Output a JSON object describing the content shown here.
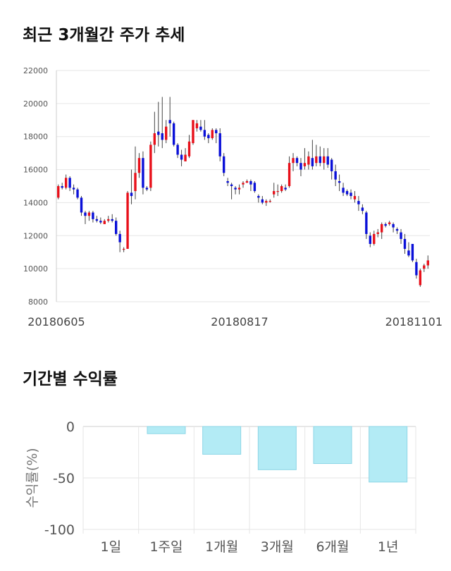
{
  "chart_data": [
    {
      "type": "candlestick",
      "title": "최근 3개월간 주가 추세",
      "ylim": [
        8000,
        22000
      ],
      "y_ticks": [
        "22000",
        "20000",
        "18000",
        "16000",
        "14000",
        "12000",
        "10000",
        "8000"
      ],
      "x_tick_labels": [
        "20180605",
        "20180817",
        "20181101"
      ],
      "colors": {
        "up": "#e8101a",
        "down": "#0a10d8",
        "grid": "#e6e6e6"
      },
      "candles": [
        [
          14300,
          15000,
          15100,
          14200
        ],
        [
          15000,
          14900,
          15200,
          14800
        ],
        [
          14900,
          15500,
          15700,
          14800
        ],
        [
          15500,
          14900,
          15600,
          14700
        ],
        [
          14900,
          14800,
          15100,
          14500
        ],
        [
          14800,
          14300,
          14900,
          14200
        ],
        [
          14300,
          13400,
          14400,
          13200
        ],
        [
          13400,
          13200,
          13500,
          12700
        ],
        [
          13200,
          13400,
          13500,
          12900
        ],
        [
          13400,
          13000,
          13500,
          12800
        ],
        [
          13000,
          12900,
          13200,
          12800
        ],
        [
          12900,
          12800,
          13100,
          12700
        ],
        [
          12700,
          12900,
          13000,
          12700
        ],
        [
          12900,
          13000,
          13200,
          12800
        ],
        [
          13000,
          12900,
          13300,
          12800
        ],
        [
          12900,
          12100,
          13100,
          12000
        ],
        [
          12100,
          11600,
          12300,
          11000
        ],
        [
          11200,
          11200,
          11300,
          11000
        ],
        [
          11200,
          14600,
          14700,
          11200
        ],
        [
          14600,
          14400,
          16000,
          13900
        ],
        [
          14700,
          15800,
          17400,
          14200
        ],
        [
          15800,
          16700,
          17000,
          15500
        ],
        [
          16700,
          14900,
          17100,
          14500
        ],
        [
          14900,
          14800,
          15000,
          14700
        ],
        [
          14900,
          17500,
          17700,
          14700
        ],
        [
          17500,
          18200,
          19500,
          17000
        ],
        [
          18300,
          18100,
          20100,
          17400
        ],
        [
          18200,
          17800,
          20400,
          17300
        ],
        [
          17800,
          18600,
          19000,
          17600
        ],
        [
          19000,
          18800,
          20400,
          18000
        ],
        [
          18800,
          17500,
          18900,
          17400
        ],
        [
          17500,
          16900,
          17600,
          16700
        ],
        [
          16900,
          16600,
          17200,
          16200
        ],
        [
          16500,
          16900,
          17300,
          16500
        ],
        [
          16800,
          17700,
          18100,
          16700
        ],
        [
          17600,
          19000,
          19000,
          17500
        ],
        [
          18500,
          18800,
          19000,
          18300
        ],
        [
          18600,
          18400,
          19000,
          18300
        ],
        [
          18400,
          18000,
          19000,
          17800
        ],
        [
          18100,
          17900,
          18200,
          17600
        ],
        [
          17900,
          18400,
          18500,
          17800
        ],
        [
          18400,
          18200,
          18500,
          17600
        ],
        [
          18200,
          16800,
          18500,
          16500
        ],
        [
          16800,
          15800,
          17000,
          15600
        ],
        [
          15300,
          15200,
          15500,
          15000
        ],
        [
          15100,
          15000,
          15200,
          14200
        ],
        [
          14900,
          14800,
          15000,
          14500
        ],
        [
          14800,
          14900,
          15100,
          14500
        ],
        [
          15100,
          15200,
          15300,
          14900
        ],
        [
          15200,
          15300,
          15400,
          15200
        ],
        [
          15300,
          15100,
          15400,
          14700
        ],
        [
          15200,
          14700,
          15300,
          14600
        ],
        [
          14400,
          14300,
          14500,
          14000
        ],
        [
          14200,
          14000,
          14400,
          13900
        ],
        [
          14000,
          14100,
          14200,
          13800
        ],
        [
          14100,
          14100,
          14200,
          14000
        ],
        [
          14500,
          14700,
          15200,
          14300
        ],
        [
          14700,
          14700,
          15100,
          14400
        ],
        [
          14700,
          15000,
          15100,
          14600
        ],
        [
          14900,
          14800,
          15100,
          14700
        ],
        [
          15000,
          16400,
          16800,
          14900
        ],
        [
          16400,
          16700,
          17000,
          15900
        ],
        [
          16700,
          16400,
          16800,
          16200
        ],
        [
          16400,
          16000,
          16700,
          15600
        ],
        [
          16200,
          16400,
          17300,
          16000
        ],
        [
          16300,
          16800,
          17100,
          16000
        ],
        [
          16700,
          16200,
          17800,
          16000
        ],
        [
          16400,
          16800,
          17500,
          16200
        ],
        [
          16800,
          16400,
          17400,
          16200
        ],
        [
          16400,
          16800,
          17300,
          16000
        ],
        [
          16800,
          16300,
          17300,
          16100
        ],
        [
          16600,
          15900,
          16700,
          15400
        ],
        [
          15900,
          15400,
          16300,
          15000
        ],
        [
          15300,
          15200,
          15700,
          14700
        ],
        [
          14900,
          14600,
          15200,
          14400
        ],
        [
          14700,
          14500,
          14800,
          14400
        ],
        [
          14600,
          14400,
          14800,
          14200
        ],
        [
          14200,
          14400,
          14700,
          14000
        ],
        [
          14100,
          13900,
          14400,
          13500
        ],
        [
          13700,
          13500,
          13900,
          13300
        ],
        [
          13400,
          12100,
          13500,
          11800
        ],
        [
          12000,
          11500,
          12200,
          11300
        ],
        [
          11500,
          12100,
          12300,
          11400
        ],
        [
          12100,
          12200,
          12400,
          11900
        ],
        [
          12200,
          12700,
          12800,
          11800
        ],
        [
          12700,
          12600,
          12800,
          12500
        ],
        [
          12700,
          12800,
          12900,
          12600
        ],
        [
          12700,
          12500,
          12800,
          12200
        ],
        [
          12400,
          12300,
          12500,
          12100
        ],
        [
          12200,
          11800,
          12400,
          11500
        ],
        [
          11800,
          11200,
          12100,
          10900
        ],
        [
          11100,
          10800,
          11600,
          10700
        ],
        [
          11500,
          10500,
          11500,
          10400
        ],
        [
          10400,
          9600,
          10600,
          9400
        ],
        [
          9000,
          9900,
          10000,
          8900
        ],
        [
          10000,
          10200,
          10300,
          9800
        ],
        [
          10200,
          10500,
          10800,
          10000
        ]
      ]
    },
    {
      "type": "bar",
      "title": "기간별 수익률",
      "ylabel": "수익률(%)",
      "categories": [
        "1일",
        "1주일",
        "1개월",
        "3개월",
        "6개월",
        "1년"
      ],
      "values": [
        0,
        -7,
        -27,
        -42,
        -36,
        -54
      ],
      "ylim": [
        -100,
        0
      ],
      "y_ticks": [
        "0",
        "-50",
        "-100"
      ],
      "colors": {
        "bar_fill": "#b3ebf5",
        "bar_stroke": "#8dd6e6",
        "grid": "#e6e6e6"
      }
    }
  ]
}
